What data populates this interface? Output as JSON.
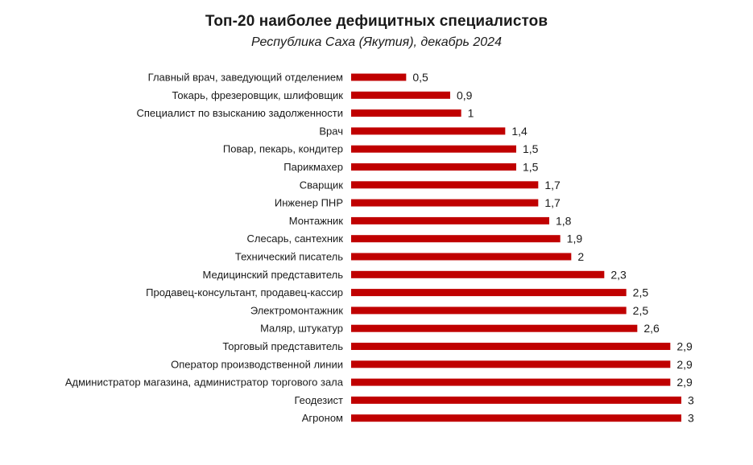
{
  "chart_data": {
    "type": "bar",
    "orientation": "horizontal",
    "title": "Топ-20 наиболее дефицитных специалистов",
    "subtitle": "Республика Саха (Якутия), декабрь 2024",
    "categories": [
      "Главный врач, заведующий отделением",
      "Токарь, фрезеровщик, шлифовщик",
      "Специалист по взысканию задолженности",
      "Врач",
      "Повар, пекарь, кондитер",
      "Парикмахер",
      "Сварщик",
      "Инженер ПНР",
      "Монтажник",
      "Слесарь, сантехник",
      "Технический писатель",
      "Медицинский представитель",
      "Продавец-консультант, продавец-кассир",
      "Электромонтажник",
      "Маляр, штукатур",
      "Торговый представитель",
      "Оператор производственной линии",
      "Администратор магазина, администратор торгового зала",
      "Геодезист",
      "Агроном"
    ],
    "values": [
      0.5,
      0.9,
      1,
      1.4,
      1.5,
      1.5,
      1.7,
      1.7,
      1.8,
      1.9,
      2,
      2.3,
      2.5,
      2.5,
      2.6,
      2.9,
      2.9,
      2.9,
      3,
      3
    ],
    "value_labels": [
      "0,5",
      "0,9",
      "1",
      "1,4",
      "1,5",
      "1,5",
      "1,7",
      "1,7",
      "1,8",
      "1,9",
      "2",
      "2,3",
      "2,5",
      "2,5",
      "2,6",
      "2,9",
      "2,9",
      "2,9",
      "3",
      "3"
    ],
    "xlim": [
      0,
      3
    ],
    "grid": false,
    "legend": "none",
    "bar_color": "#c00000"
  }
}
